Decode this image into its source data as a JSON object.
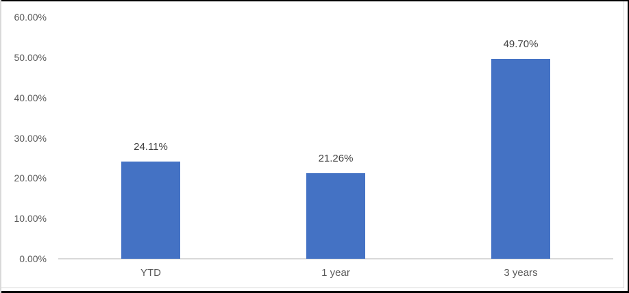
{
  "chart_data": {
    "type": "bar",
    "title": "",
    "xlabel": "",
    "ylabel": "",
    "categories": [
      "YTD",
      "1 year",
      "3 years"
    ],
    "values": [
      24.11,
      21.26,
      49.7
    ],
    "value_labels": [
      "24.11%",
      "21.26%",
      "49.70%"
    ],
    "y_ticks": [
      {
        "label": "0.00%",
        "value": 0
      },
      {
        "label": "10.00%",
        "value": 10
      },
      {
        "label": "20.00%",
        "value": 20
      },
      {
        "label": "30.00%",
        "value": 30
      },
      {
        "label": "40.00%",
        "value": 40
      },
      {
        "label": "50.00%",
        "value": 50
      },
      {
        "label": "60.00%",
        "value": 60
      }
    ],
    "ylim": [
      0,
      60
    ],
    "grid": false,
    "legend": "none",
    "colors": {
      "bar": "#4472C4",
      "tick_label": "#595959",
      "category_label": "#595959",
      "data_label": "#3f3f3f",
      "axis_line": "#d9d9d9",
      "chart_border": "#d9d9d9",
      "outer_border": "#000000"
    }
  }
}
